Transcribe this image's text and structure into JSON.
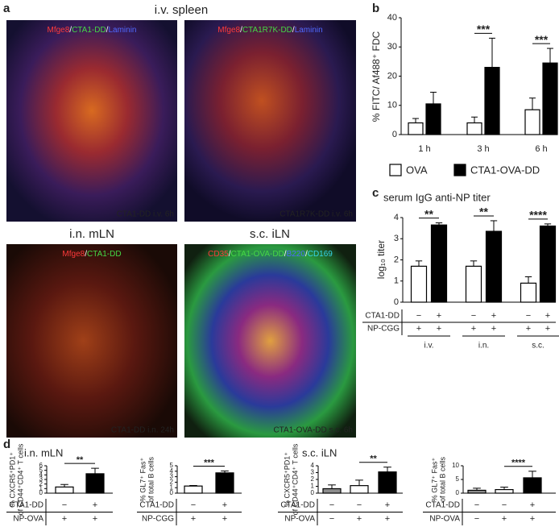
{
  "panel_labels": [
    "a",
    "b",
    "c",
    "d"
  ],
  "image_titles": [
    "i.v. spleen",
    "i.n. mLN",
    "s.c. iLN"
  ],
  "stain_separator": "/",
  "images": [
    {
      "stains": [
        {
          "text": "Mfge8",
          "color": "#ff3a3a"
        },
        {
          "text": "CTA1-DD",
          "color": "#45d845"
        },
        {
          "text": "Laminin",
          "color": "#5068ff"
        }
      ],
      "caption": "CTA1-DD i.v. 6h"
    },
    {
      "stains": [
        {
          "text": "Mfge8",
          "color": "#ff3a3a"
        },
        {
          "text": "CTA1R7K-DD",
          "color": "#45d845"
        },
        {
          "text": "Laminin",
          "color": "#5068ff"
        }
      ],
      "caption": "CTA1R7K-DD i.v. 6h"
    },
    {
      "stains": [
        {
          "text": "Mfge8",
          "color": "#ff3a3a"
        },
        {
          "text": "CTA1-DD",
          "color": "#45d845"
        }
      ],
      "caption": "CTA1-DD i.n. 24h"
    },
    {
      "stains": [
        {
          "text": "CD35",
          "color": "#ff3a3a"
        },
        {
          "text": "CTA1-OVA-DD",
          "color": "#45d845"
        },
        {
          "text": "B220",
          "color": "#5068ff"
        },
        {
          "text": "CD169",
          "color": "#35d5e8"
        }
      ],
      "caption": "CTA1-OVA-DD s.c. 6h"
    }
  ],
  "chart_data": [
    {
      "type": "bar",
      "ylabel": [
        "% FITC/ Af488⁺ FDC"
      ],
      "categories": [
        "1 h",
        "3 h",
        "6 h"
      ],
      "series": [
        {
          "name": "OVA",
          "color": "#ffffff",
          "values": [
            4,
            4,
            8.5
          ],
          "errors": [
            1.5,
            2,
            4
          ]
        },
        {
          "name": "CTA1-OVA-DD",
          "color": "#000000",
          "values": [
            10.5,
            23,
            24.5
          ],
          "errors": [
            4,
            10,
            5
          ]
        }
      ],
      "significance": [
        null,
        "***",
        "***"
      ],
      "ylim": [
        0,
        40
      ],
      "yticks": [
        0,
        10,
        20,
        30,
        40
      ]
    },
    {
      "type": "bar",
      "title": "serum IgG anti-NP titer",
      "ylabel": [
        "log₁₀ titer"
      ],
      "values": [
        1.7,
        3.65,
        1.7,
        3.35,
        0.9,
        3.6
      ],
      "errors": [
        0.25,
        0.1,
        0.25,
        0.5,
        0.3,
        0.1
      ],
      "colors": [
        "#ffffff",
        "#000000",
        "#ffffff",
        "#000000",
        "#ffffff",
        "#000000"
      ],
      "rows": [
        {
          "label": "CTA1-DD",
          "values": [
            "−",
            "+",
            "−",
            "+",
            "−",
            "+"
          ]
        },
        {
          "label": "NP-CGG",
          "values": [
            "+",
            "+",
            "+",
            "+",
            "+",
            "+"
          ]
        }
      ],
      "groups": [
        {
          "label": "i.v.",
          "significance": "**"
        },
        {
          "label": "i.n.",
          "significance": "**"
        },
        {
          "label": "s.c.",
          "significance": "****"
        }
      ],
      "ylim": [
        0,
        4
      ],
      "yticks": [
        0,
        1,
        2,
        3,
        4
      ]
    },
    {
      "type": "bar",
      "title": "i.n. mLN",
      "ylabel": [
        "% CXCR5⁺PD1⁺",
        "of CD44⁺CD4⁺ T cells"
      ],
      "values": [
        1.35,
        4.25
      ],
      "errors": [
        0.55,
        1.2
      ],
      "colors": [
        "#ffffff",
        "#000000"
      ],
      "rows": [
        {
          "label": "CTA1-DD",
          "values": [
            "−",
            "+"
          ]
        },
        {
          "label": "NP-OVA",
          "values": [
            "+",
            "+"
          ]
        }
      ],
      "significance": "**",
      "ylim": [
        0,
        6
      ],
      "yticks": [
        0,
        1,
        2,
        3,
        4,
        5,
        6
      ]
    },
    {
      "type": "bar",
      "ylabel": [
        "% GL7⁺ Fas⁺",
        "of total B cells"
      ],
      "values": [
        1.3,
        3.7
      ],
      "errors": [
        0.1,
        0.35
      ],
      "colors": [
        "#ffffff",
        "#000000"
      ],
      "rows": [
        {
          "label": "CTA1-DD",
          "values": [
            "−",
            "+"
          ]
        },
        {
          "label": "NP-CGG",
          "values": [
            "+",
            "+"
          ]
        }
      ],
      "significance": "***",
      "ylim": [
        0,
        5
      ],
      "yticks": [
        0,
        1,
        2,
        3,
        4,
        5
      ]
    },
    {
      "type": "bar",
      "title": "s.c. iLN",
      "ylabel": [
        "% CXCR5⁺PD1⁺",
        "of CD44⁺CD4⁺ T cells"
      ],
      "values": [
        0.65,
        1.1,
        3.1
      ],
      "errors": [
        0.55,
        0.8,
        0.7
      ],
      "colors": [
        "#8c8c8c",
        "#ffffff",
        "#000000"
      ],
      "rows": [
        {
          "label": "CTA1-DD",
          "values": [
            "−",
            "−",
            "+"
          ]
        },
        {
          "label": "NP-OVA",
          "values": [
            "−",
            "+",
            "+"
          ]
        }
      ],
      "significance": "**",
      "ylim": [
        0,
        4
      ],
      "yticks": [
        0,
        1,
        2,
        3,
        4
      ]
    },
    {
      "type": "bar",
      "ylabel": [
        "% GL7⁺ Fas⁺",
        "of total B cells"
      ],
      "values": [
        1.05,
        1.3,
        5.6
      ],
      "errors": [
        0.75,
        0.9,
        2.4
      ],
      "colors": [
        "#8c8c8c",
        "#ffffff",
        "#000000"
      ],
      "rows": [
        {
          "label": "CTA1-DD",
          "values": [
            "−",
            "−",
            "+"
          ]
        },
        {
          "label": "NP-OVA",
          "values": [
            "−",
            "+",
            "+"
          ]
        }
      ],
      "significance": "****",
      "ylim": [
        0,
        10
      ],
      "yticks": [
        0,
        5,
        10
      ]
    }
  ]
}
